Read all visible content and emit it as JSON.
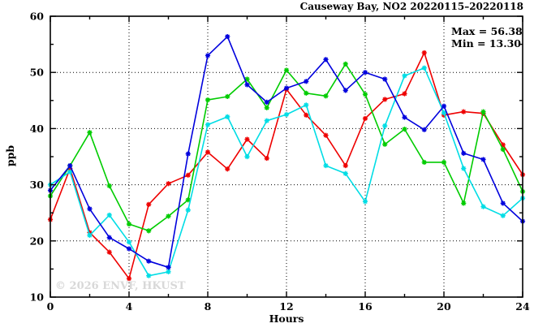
{
  "page": {
    "background": "#ffffff"
  },
  "chart_data": {
    "type": "line",
    "title": "Causeway Bay, NO2 20220115–20220118",
    "xlabel": "Hours",
    "ylabel": "ppb",
    "annotations": {
      "max_label": "Max = 56.38",
      "min_label": "Min = 13.30"
    },
    "max_value": 56.38,
    "min_value": 13.3,
    "watermark": "© 2026 ENVF, HKUST",
    "xlim": [
      0,
      24
    ],
    "ylim": [
      10,
      60
    ],
    "xticks": [
      0,
      4,
      8,
      12,
      16,
      20,
      24
    ],
    "yticks": [
      10,
      20,
      30,
      40,
      50,
      60
    ],
    "x_minor_step": 2,
    "y_minor_step": 5,
    "grid": "dotted",
    "legend_position": "none",
    "marker": "star",
    "x": [
      0,
      1,
      2,
      3,
      4,
      5,
      6,
      7,
      8,
      9,
      10,
      11,
      12,
      13,
      14,
      15,
      16,
      17,
      18,
      19,
      20,
      21,
      22,
      23,
      24
    ],
    "series": [
      {
        "name": "series-red",
        "color": "#ee0000",
        "values": [
          23.8,
          32.9,
          21.5,
          18.0,
          13.3,
          26.5,
          30.2,
          31.7,
          35.8,
          32.8,
          38.1,
          34.7,
          47.0,
          42.4,
          38.8,
          33.4,
          41.8,
          45.2,
          46.2,
          53.5,
          42.4,
          43.0,
          42.7,
          37.1,
          31.8
        ]
      },
      {
        "name": "series-green",
        "color": "#00cc00",
        "values": [
          28.0,
          33.4,
          39.3,
          29.8,
          23.0,
          21.8,
          24.4,
          27.3,
          45.1,
          45.7,
          48.8,
          43.7,
          50.4,
          46.3,
          45.8,
          51.5,
          46.1,
          37.2,
          39.9,
          34.0,
          34.0,
          26.7,
          43.0,
          36.3,
          28.8
        ]
      },
      {
        "name": "series-cyan",
        "color": "#00dde5",
        "values": [
          30.0,
          32.3,
          21.0,
          24.6,
          19.8,
          13.8,
          14.5,
          25.5,
          40.7,
          42.1,
          35.0,
          41.4,
          42.5,
          44.2,
          33.4,
          32.0,
          27.0,
          40.5,
          49.4,
          50.8,
          42.8,
          32.9,
          26.1,
          24.5,
          27.6
        ]
      },
      {
        "name": "series-blue",
        "color": "#0000dd",
        "values": [
          29.0,
          33.4,
          25.7,
          20.6,
          18.6,
          16.4,
          15.3,
          35.5,
          53.0,
          56.38,
          47.8,
          44.7,
          47.2,
          48.4,
          52.3,
          46.8,
          50.0,
          48.8,
          42.0,
          39.8,
          44.0,
          35.6,
          34.5,
          26.7,
          23.5
        ]
      }
    ]
  }
}
